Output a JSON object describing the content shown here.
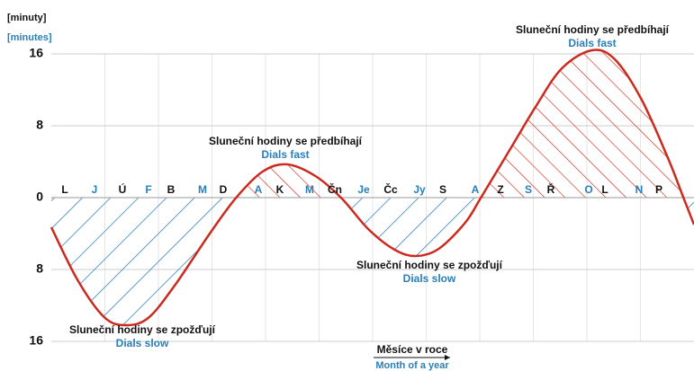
{
  "chart_data": {
    "type": "line",
    "y_label": "[minuty]",
    "y_label_en": "[minutes]",
    "x_label": "Měsíce v roce",
    "x_label_en": "Month of a year",
    "x": [
      0,
      15,
      30,
      42,
      55,
      70,
      90,
      105,
      120,
      134,
      150,
      165,
      180,
      195,
      207,
      220,
      235,
      244,
      260,
      275,
      290,
      307,
      320,
      335,
      350,
      359,
      365
    ],
    "series": [
      {
        "color": "#cc2a1e",
        "values": [
          -3.3,
          -9.2,
          -13.3,
          -14.2,
          -13.4,
          -9.8,
          -4.0,
          0,
          2.9,
          3.7,
          2.4,
          -0.1,
          -3.5,
          -5.8,
          -6.5,
          -5.7,
          -2.8,
          0,
          5.2,
          10.1,
          14.4,
          16.4,
          15.4,
          11.0,
          4.5,
          0,
          -3.0
        ]
      }
    ],
    "xlim": [
      0,
      365
    ],
    "ylim": [
      -16,
      16
    ],
    "yticks": [
      {
        "value": -16,
        "label": "16"
      },
      {
        "value": -8,
        "label": "8"
      },
      0,
      8,
      16
    ],
    "grid": true,
    "fast_color": "#cc2a1e",
    "slow_color": "#2a7fb8",
    "months": [
      "L",
      "J",
      "Ú",
      "F",
      "B",
      "M",
      "D",
      "A",
      "K",
      "M",
      "Čn",
      "Je",
      "Čc",
      "Jy",
      "S",
      "A",
      "Z",
      "S",
      "Ř",
      "O",
      "L",
      "N",
      "P"
    ],
    "month_colors": [
      "#111",
      "#2a7fb8",
      "#111",
      "#2a7fb8",
      "#111",
      "#2a7fb8",
      "#111",
      "#2a7fb8",
      "#111",
      "#2a7fb8",
      "#111",
      "#2a7fb8",
      "#111",
      "#2a7fb8",
      "#111",
      "#2a7fb8",
      "#111",
      "#2a7fb8",
      "#111",
      "#2a7fb8",
      "#111",
      "#2a7fb8",
      "#111"
    ],
    "annotations": [
      {
        "text": "Sluneční hodiny se zpožďují",
        "subtext": "Dials slow"
      },
      {
        "text": "Sluneční hodiny se předbíhají",
        "subtext": "Dials fast"
      },
      {
        "text": "Sluneční hodiny se zpožďují",
        "subtext": "Dials slow"
      },
      {
        "text": "Sluneční hodiny se předbíhají",
        "subtext": "Dials fast"
      }
    ]
  }
}
